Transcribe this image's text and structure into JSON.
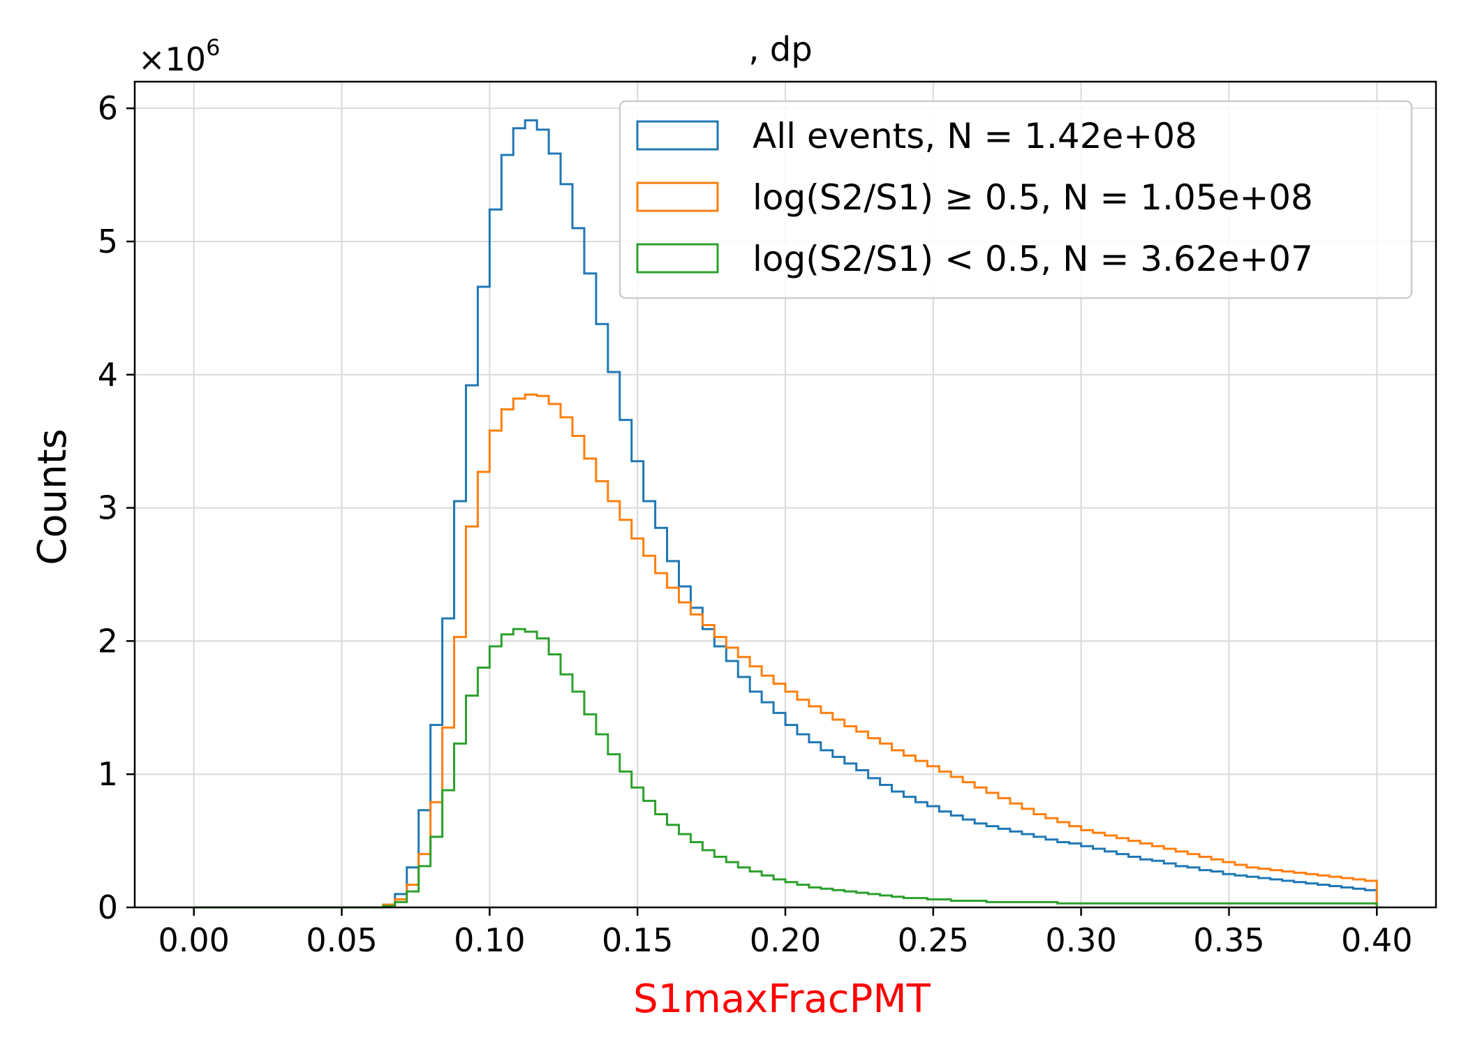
{
  "chart_data": {
    "type": "histogram-step",
    "title": ", dp",
    "xlabel": "S1maxFracPMT",
    "ylabel": "Counts",
    "xlabel_color": "#ff0000",
    "y_multiplier": "×10",
    "y_multiplier_exp": "6",
    "xlim": [
      -0.02,
      0.42
    ],
    "ylim": [
      0,
      6.2
    ],
    "xticks": [
      "0.00",
      "0.05",
      "0.10",
      "0.15",
      "0.20",
      "0.25",
      "0.30",
      "0.35",
      "0.40"
    ],
    "yticks": [
      "0",
      "1",
      "2",
      "3",
      "4",
      "5",
      "6"
    ],
    "grid": true,
    "legend_position": "upper right",
    "bin_edges": {
      "start": 0.0,
      "step": 0.004
    },
    "series": [
      {
        "name": "All events, N = 1.42e+08",
        "color": "#1f77b4",
        "values": [
          0,
          0,
          0,
          0,
          0,
          0,
          0,
          0,
          0,
          0,
          0,
          0,
          0,
          0,
          0,
          0,
          0.02,
          0.1,
          0.3,
          0.73,
          1.37,
          2.17,
          3.05,
          3.92,
          4.66,
          5.24,
          5.65,
          5.85,
          5.91,
          5.84,
          5.66,
          5.43,
          5.1,
          4.76,
          4.38,
          4.02,
          3.66,
          3.35,
          3.05,
          2.85,
          2.6,
          2.41,
          2.25,
          2.09,
          1.96,
          1.85,
          1.73,
          1.62,
          1.54,
          1.46,
          1.37,
          1.3,
          1.24,
          1.18,
          1.13,
          1.08,
          1.03,
          0.97,
          0.92,
          0.87,
          0.83,
          0.79,
          0.76,
          0.72,
          0.69,
          0.66,
          0.63,
          0.61,
          0.59,
          0.57,
          0.55,
          0.53,
          0.51,
          0.49,
          0.48,
          0.46,
          0.44,
          0.42,
          0.4,
          0.38,
          0.36,
          0.35,
          0.33,
          0.31,
          0.3,
          0.28,
          0.27,
          0.25,
          0.24,
          0.23,
          0.22,
          0.21,
          0.2,
          0.19,
          0.18,
          0.17,
          0.16,
          0.15,
          0.14,
          0.13
        ]
      },
      {
        "name": "log(S2/S1) ≥ 0.5, N = 1.05e+08",
        "color": "#ff7f0e",
        "values": [
          0,
          0,
          0,
          0,
          0,
          0,
          0,
          0,
          0,
          0,
          0,
          0,
          0,
          0,
          0,
          0,
          0.02,
          0.06,
          0.17,
          0.4,
          0.79,
          1.35,
          2.03,
          2.86,
          3.27,
          3.58,
          3.74,
          3.82,
          3.85,
          3.84,
          3.78,
          3.68,
          3.54,
          3.37,
          3.2,
          3.05,
          2.91,
          2.77,
          2.64,
          2.51,
          2.4,
          2.29,
          2.2,
          2.12,
          2.03,
          1.95,
          1.88,
          1.81,
          1.74,
          1.68,
          1.62,
          1.56,
          1.51,
          1.46,
          1.41,
          1.36,
          1.32,
          1.27,
          1.23,
          1.18,
          1.14,
          1.1,
          1.06,
          1.02,
          0.98,
          0.94,
          0.9,
          0.86,
          0.82,
          0.78,
          0.74,
          0.7,
          0.67,
          0.64,
          0.61,
          0.58,
          0.56,
          0.54,
          0.52,
          0.5,
          0.48,
          0.46,
          0.44,
          0.42,
          0.4,
          0.38,
          0.36,
          0.34,
          0.32,
          0.3,
          0.29,
          0.28,
          0.27,
          0.26,
          0.25,
          0.24,
          0.23,
          0.22,
          0.21,
          0.2
        ]
      },
      {
        "name": "log(S2/S1) < 0.5, N = 3.62e+07",
        "color": "#2ca02c",
        "values": [
          0,
          0,
          0,
          0,
          0,
          0,
          0,
          0,
          0,
          0,
          0,
          0,
          0,
          0,
          0,
          0,
          0.01,
          0.04,
          0.12,
          0.31,
          0.53,
          0.88,
          1.23,
          1.59,
          1.8,
          1.96,
          2.05,
          2.09,
          2.07,
          2.02,
          1.9,
          1.75,
          1.62,
          1.45,
          1.3,
          1.15,
          1.02,
          0.9,
          0.8,
          0.7,
          0.62,
          0.55,
          0.49,
          0.43,
          0.38,
          0.34,
          0.3,
          0.27,
          0.24,
          0.21,
          0.19,
          0.17,
          0.15,
          0.14,
          0.13,
          0.12,
          0.11,
          0.1,
          0.09,
          0.08,
          0.07,
          0.07,
          0.06,
          0.06,
          0.05,
          0.05,
          0.05,
          0.04,
          0.04,
          0.04,
          0.04,
          0.04,
          0.04,
          0.03,
          0.03,
          0.03,
          0.03,
          0.03,
          0.03,
          0.03,
          0.03,
          0.03,
          0.03,
          0.03,
          0.03,
          0.03,
          0.03,
          0.03,
          0.03,
          0.03,
          0.03,
          0.03,
          0.03,
          0.03,
          0.03,
          0.03,
          0.03,
          0.03,
          0.03,
          0.03
        ]
      }
    ]
  }
}
